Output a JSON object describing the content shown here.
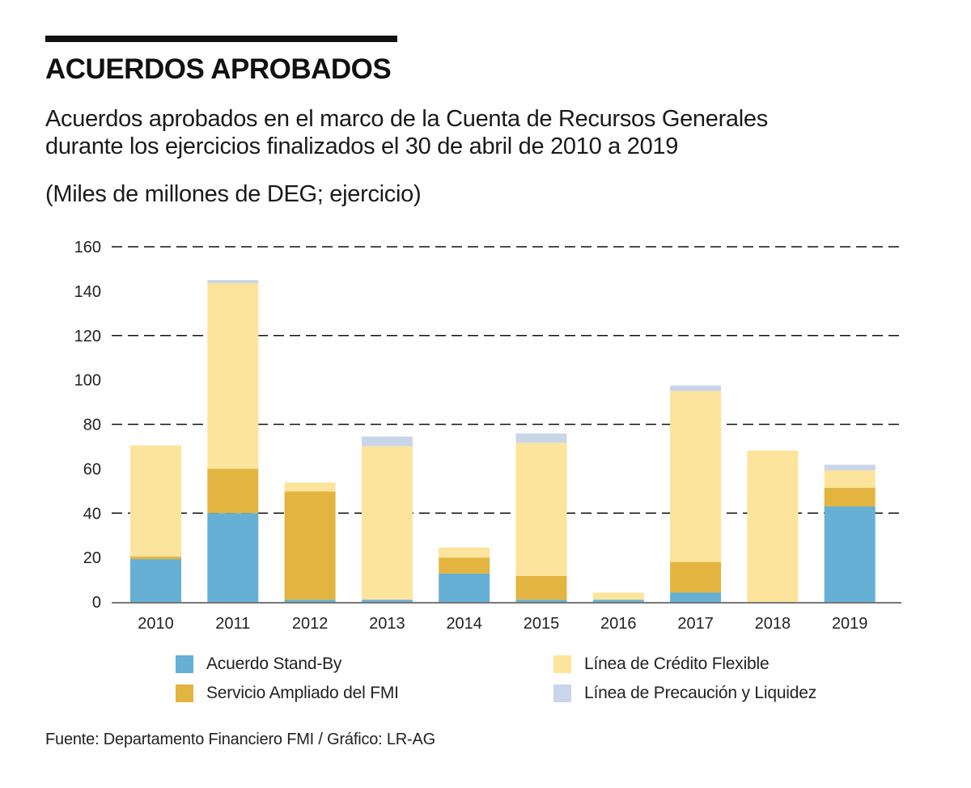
{
  "header": {
    "title": "ACUERDOS APROBADOS",
    "subtitle_line1": "Acuerdos aprobados en el marco de la Cuenta de Recursos Generales",
    "subtitle_line2": "durante los ejercicios finalizados el 30 de abril de 2010 a 2019",
    "units": "(Miles de millones de DEG; ejercicio)"
  },
  "source": "Fuente: Departamento Financiero FMI / Gráfico: LR-AG",
  "chart_data": {
    "type": "bar",
    "stacked": true,
    "title": "ACUERDOS APROBADOS",
    "subtitle": "Acuerdos aprobados en el marco de la Cuenta de Recursos Generales durante los ejercicios finalizados el 30 de abril de 2010 a 2019",
    "xlabel": "",
    "ylabel": "(Miles de millones de DEG; ejercicio)",
    "ylim": [
      0,
      160
    ],
    "yticks": [
      0,
      20,
      40,
      60,
      80,
      100,
      120,
      140,
      160
    ],
    "dashed_gridlines": [
      40,
      80,
      120,
      160
    ],
    "grid": true,
    "legend_position": "bottom",
    "categories": [
      "2010",
      "2011",
      "2012",
      "2013",
      "2014",
      "2015",
      "2016",
      "2017",
      "2018",
      "2019"
    ],
    "series": [
      {
        "name": "Acuerdo Stand-By",
        "color": "#66b0d5",
        "values": [
          19.3,
          40.0,
          1.0,
          1.0,
          12.8,
          1.0,
          1.0,
          4.2,
          0.0,
          43.0
        ]
      },
      {
        "name": "Servicio Ampliado del FMI",
        "color": "#e3b540",
        "values": [
          1.2,
          20.0,
          48.8,
          0.0,
          7.2,
          10.7,
          0.0,
          13.8,
          0.0,
          8.4
        ]
      },
      {
        "name": "Línea de Crédito Flexible",
        "color": "#fde49c",
        "values": [
          50.0,
          83.6,
          4.0,
          69.2,
          4.5,
          60.0,
          3.2,
          77.0,
          68.2,
          7.9
        ]
      },
      {
        "name": "Línea de Precaución y Liquidez",
        "color": "#c9d5e8",
        "values": [
          0.0,
          1.4,
          0.0,
          4.3,
          0.0,
          4.2,
          0.0,
          2.5,
          0.0,
          2.5
        ]
      }
    ]
  }
}
